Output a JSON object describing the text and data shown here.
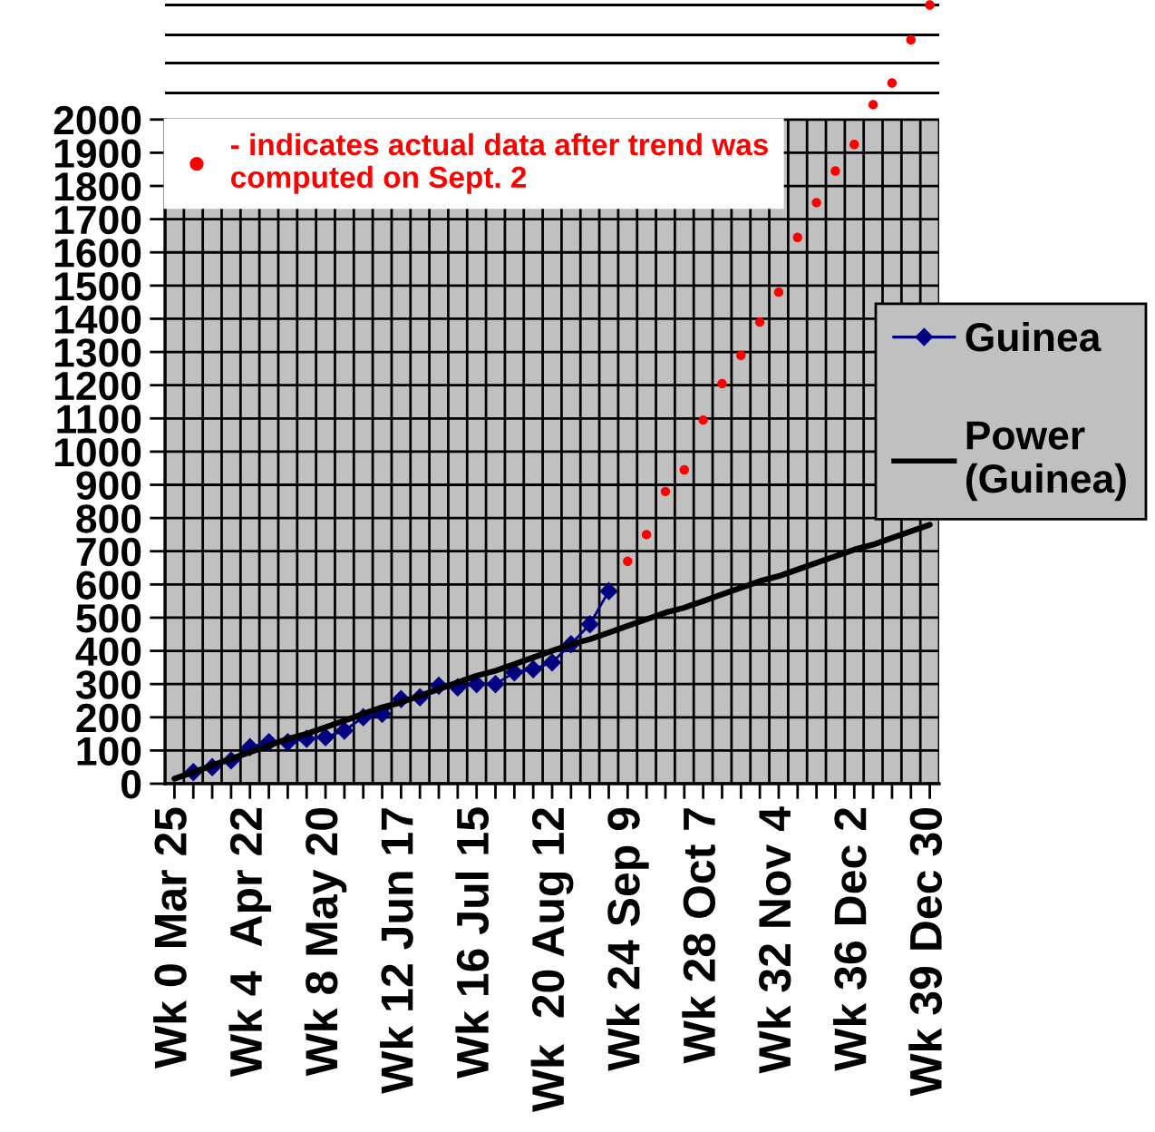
{
  "chart_data": {
    "type": "line",
    "categories": [
      "Wk 0 Mar 25",
      null,
      null,
      null,
      "Wk 4  Apr 22",
      null,
      null,
      null,
      "Wk 8 May 20",
      null,
      null,
      null,
      "Wk 12 Jun 17",
      null,
      null,
      null,
      "Wk 16 Jul 15",
      null,
      null,
      null,
      "Wk  20 Aug 12",
      null,
      null,
      null,
      "Wk 24 Sep 9",
      null,
      null,
      null,
      "Wk 28 Oct 7",
      null,
      null,
      null,
      "Wk 32 Nov 4",
      null,
      null,
      null,
      "Wk 36 Dec 2",
      null,
      null,
      null,
      "Wk 39 Dec 30"
    ],
    "ylim": [
      0,
      2360
    ],
    "yticks": [
      0,
      100,
      200,
      300,
      400,
      500,
      600,
      700,
      800,
      900,
      1000,
      1100,
      1200,
      1300,
      1400,
      1500,
      1600,
      1700,
      1800,
      1900,
      2000
    ],
    "grid": true,
    "legend": "right",
    "bands": [
      {
        "axis": "y",
        "from": 0,
        "to": 2000,
        "color": "#c0c0c0"
      }
    ],
    "ref_lines": [
      {
        "axis": "y",
        "value": 2080,
        "color": "#000000"
      },
      {
        "axis": "y",
        "value": 2170,
        "color": "#000000"
      },
      {
        "axis": "y",
        "value": 2255,
        "color": "#000000"
      },
      {
        "axis": "y",
        "value": 2345,
        "color": "#000000"
      }
    ],
    "series": [
      {
        "name": "Guinea",
        "color": "#000080",
        "marker": "diamond",
        "values": [
          null,
          35,
          50,
          70,
          110,
          125,
          125,
          135,
          140,
          160,
          200,
          210,
          255,
          260,
          295,
          290,
          300,
          300,
          335,
          345,
          365,
          420,
          480,
          580,
          null,
          null,
          null,
          null,
          null,
          null,
          null,
          null,
          null,
          null,
          null,
          null,
          null,
          null,
          null,
          null,
          null
        ]
      },
      {
        "name": "Power\n(Guinea)",
        "color": "#000000",
        "marker": "none",
        "values": [
          15,
          35,
          55,
          75,
          95,
          115,
          135,
          150,
          170,
          190,
          210,
          230,
          245,
          265,
          285,
          305,
          325,
          340,
          360,
          380,
          400,
          420,
          435,
          455,
          475,
          495,
          515,
          530,
          550,
          570,
          590,
          610,
          625,
          645,
          665,
          685,
          705,
          720,
          740,
          760,
          780
        ]
      },
      {
        "name": "- indicates actual data after trend was\ncomputed on Sept. 2",
        "type": "scatter",
        "color": "#ff0000",
        "marker": "circle",
        "values": [
          null,
          null,
          null,
          null,
          null,
          null,
          null,
          null,
          null,
          null,
          null,
          null,
          null,
          null,
          null,
          null,
          null,
          null,
          null,
          null,
          null,
          null,
          null,
          null,
          670,
          750,
          880,
          945,
          1095,
          1205,
          1290,
          1390,
          1480,
          1645,
          1750,
          1845,
          1925,
          2045,
          2110,
          2240,
          2345
        ]
      }
    ]
  }
}
